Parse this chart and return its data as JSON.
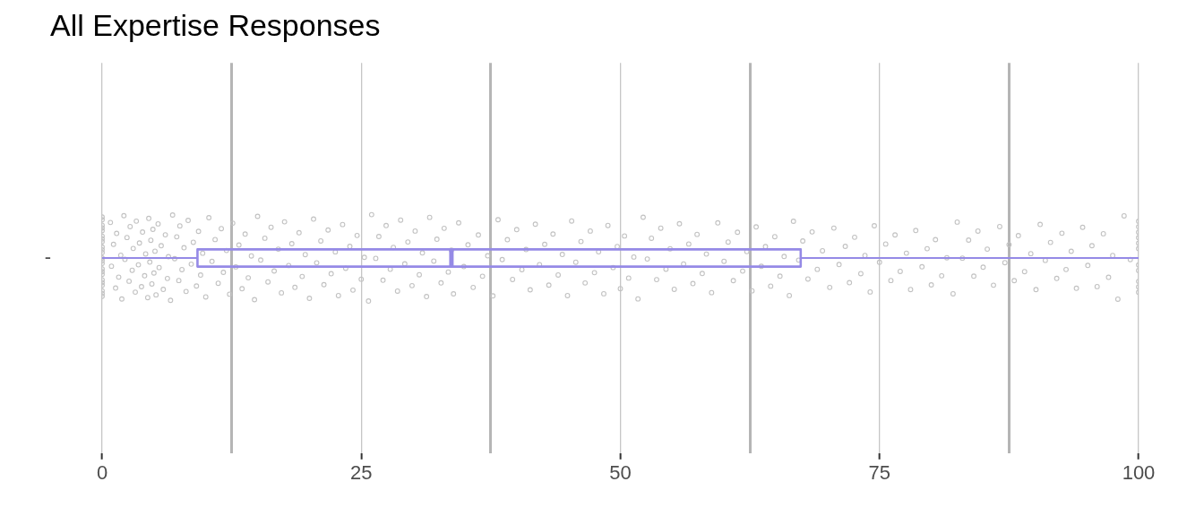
{
  "chart_data": {
    "type": "box",
    "title": "All Expertise Responses",
    "orientation": "horizontal",
    "categories": [
      "-"
    ],
    "xlim": [
      0,
      100
    ],
    "xticks": [
      0,
      {
        "value": 12.5,
        "label": null
      },
      25,
      {
        "value": 37.5,
        "label": null
      },
      50,
      {
        "value": 62.5,
        "label": null
      },
      75,
      {
        "value": 87.5,
        "label": null
      },
      100
    ],
    "grid": "x",
    "series": [
      {
        "type": "scatter",
        "color": "#c2c2c2",
        "marker": "circle",
        "x": [
          "-",
          "-",
          "-",
          "-",
          "-",
          "-",
          "-",
          "-",
          "-",
          "-",
          "-",
          "-",
          "-",
          "-",
          "-",
          "-",
          "-",
          "-",
          "-",
          "-",
          "-",
          "-",
          "-",
          "-",
          "-",
          "-",
          "-",
          "-",
          "-",
          "-",
          "-",
          "-",
          "-",
          "-",
          "-",
          "-",
          "-",
          "-",
          "-",
          "-",
          "-",
          "-",
          "-",
          "-",
          "-",
          "-",
          "-",
          "-",
          "-",
          "-",
          "-",
          "-",
          "-",
          "-",
          "-",
          "-",
          "-",
          "-",
          "-",
          "-",
          "-",
          "-",
          "-",
          "-",
          "-",
          "-",
          "-",
          "-",
          "-",
          "-",
          "-",
          "-",
          "-",
          "-",
          "-",
          "-",
          "-",
          "-",
          "-",
          "-",
          "-",
          "-",
          "-",
          "-",
          "-",
          "-",
          "-",
          "-",
          "-",
          "-",
          "-",
          "-",
          "-",
          "-",
          "-",
          "-",
          "-",
          "-",
          "-",
          "-",
          "-",
          "-",
          "-",
          "-",
          "-",
          "-",
          "-",
          "-",
          "-",
          "-",
          "-",
          "-",
          "-",
          "-",
          "-",
          "-",
          "-",
          "-",
          "-",
          "-",
          "-",
          "-",
          "-",
          "-",
          "-",
          "-",
          "-",
          "-",
          "-",
          "-",
          "-",
          "-",
          "-",
          "-",
          "-",
          "-",
          "-",
          "-",
          "-",
          "-",
          "-",
          "-",
          "-",
          "-",
          "-",
          "-",
          "-",
          "-",
          "-",
          "-",
          "-",
          "-",
          "-",
          "-",
          "-",
          "-",
          "-",
          "-",
          "-",
          "-",
          "-",
          "-",
          "-",
          "-",
          "-",
          "-",
          "-",
          "-",
          "-",
          "-",
          "-",
          "-",
          "-",
          "-",
          "-",
          "-",
          "-",
          "-",
          "-",
          "-",
          "-",
          "-",
          "-",
          "-",
          "-",
          "-",
          "-",
          "-",
          "-",
          "-",
          "-",
          "-",
          "-",
          "-",
          "-",
          "-",
          "-",
          "-",
          "-",
          "-",
          "-",
          "-",
          "-",
          "-",
          "-",
          "-",
          "-",
          "-",
          "-",
          "-",
          "-",
          "-",
          "-",
          "-",
          "-",
          "-",
          "-",
          "-",
          "-",
          "-",
          "-",
          "-",
          "-",
          "-",
          "-",
          "-",
          "-",
          "-",
          "-",
          "-",
          "-",
          "-",
          "-",
          "-",
          "-",
          "-",
          "-",
          "-",
          "-",
          "-",
          "-",
          "-",
          "-",
          "-",
          "-",
          "-",
          "-",
          "-",
          "-",
          "-",
          "-",
          "-",
          "-",
          "-",
          "-",
          "-",
          "-",
          "-",
          "-",
          "-",
          "-",
          "-",
          "-",
          "-",
          "-",
          "-",
          "-",
          "-",
          "-",
          "-",
          "-",
          "-",
          "-",
          "-",
          "-",
          "-",
          "-",
          "-",
          "-",
          "-",
          "-",
          "-",
          "-",
          "-",
          "-",
          "-",
          "-",
          "-",
          "-",
          "-",
          "-",
          "-",
          "-",
          "-",
          "-",
          "-",
          "-",
          "-",
          "-",
          "-"
        ],
        "values": [
          0,
          0,
          0,
          0,
          0,
          0,
          0,
          0,
          0,
          0,
          0,
          0,
          0,
          0,
          0,
          0,
          0,
          0,
          0,
          0,
          0,
          0,
          0,
          0.8,
          0.9,
          1.1,
          1.3,
          1.4,
          1.6,
          1.8,
          1.9,
          2.1,
          2.2,
          2.4,
          2.6,
          2.7,
          2.9,
          3,
          3.2,
          3.3,
          3.5,
          3.6,
          3.8,
          3.9,
          4.1,
          4.2,
          4.4,
          4.5,
          4.6,
          4.7,
          4.8,
          4.9,
          5,
          5.1,
          5.2,
          5.4,
          5.5,
          5.7,
          5.9,
          6.1,
          6.3,
          6.4,
          6.6,
          6.8,
          7,
          7.2,
          7.4,
          7.5,
          7.7,
          7.9,
          8.1,
          8.3,
          8.6,
          8.8,
          9.1,
          9.3,
          9.5,
          9.7,
          10,
          10.3,
          10.6,
          10.9,
          11.2,
          11.5,
          11.7,
          12,
          12.3,
          12.6,
          12.9,
          13.2,
          13.5,
          13.8,
          14.1,
          14.4,
          14.7,
          15,
          15.3,
          15.7,
          16,
          16.3,
          16.6,
          17,
          17.3,
          17.6,
          18,
          18.3,
          18.6,
          19,
          19.3,
          19.6,
          20,
          20.4,
          20.7,
          21.1,
          21.4,
          21.8,
          22.1,
          22.5,
          22.8,
          23.2,
          23.5,
          23.9,
          24.2,
          24.6,
          25,
          25.3,
          25.7,
          26,
          26.4,
          26.7,
          27.1,
          27.4,
          27.8,
          28.1,
          28.5,
          28.8,
          29.2,
          29.5,
          29.9,
          30.2,
          30.6,
          30.9,
          31.3,
          31.6,
          32,
          32.3,
          32.7,
          33,
          33.4,
          33.7,
          33.9,
          34.4,
          34.9,
          35.3,
          35.8,
          36.3,
          36.7,
          37.2,
          37.7,
          38.2,
          38.6,
          39.1,
          39.6,
          40,
          40.5,
          40.9,
          41.3,
          41.8,
          42.2,
          42.7,
          43.1,
          43.5,
          44,
          44.4,
          44.9,
          45.3,
          45.7,
          46.2,
          46.6,
          47.1,
          47.5,
          47.9,
          48.4,
          48.8,
          49.3,
          49.7,
          50,
          50.4,
          50.8,
          51.3,
          51.7,
          52.2,
          52.6,
          53,
          53.5,
          53.9,
          54.4,
          54.8,
          55.2,
          55.7,
          56.1,
          56.6,
          57,
          57.4,
          57.9,
          58.3,
          58.8,
          59.4,
          60,
          60.4,
          60.9,
          61.3,
          61.8,
          62.2,
          62.7,
          63.1,
          63.6,
          64,
          64.5,
          64.9,
          65.4,
          65.8,
          66.3,
          66.7,
          67.2,
          67.6,
          68.1,
          68.5,
          69,
          69.5,
          70.2,
          70.6,
          71.1,
          71.7,
          72.1,
          72.6,
          73.2,
          73.6,
          74.1,
          74.5,
          75,
          75.6,
          76.1,
          76.5,
          77,
          77.6,
          78,
          78.5,
          79.1,
          79.6,
          80,
          80.4,
          81,
          81.5,
          82.1,
          82.5,
          83,
          83.6,
          84.1,
          84.5,
          85,
          85.4,
          86,
          86.6,
          87.1,
          87.5,
          88,
          88.4,
          89,
          89.6,
          90.1,
          90.5,
          91,
          91.5,
          92.1,
          92.6,
          93,
          93.5,
          94,
          94.6,
          95.1,
          95.5,
          96,
          96.6,
          97.1,
          97.5,
          98,
          98.6,
          99.2,
          100,
          100,
          100,
          100,
          100,
          100,
          100,
          100,
          100,
          100,
          100
        ]
      },
      {
        "type": "box",
        "color": "#958ae6",
        "boxes": [
          {
            "low": 0,
            "q1": 9.2,
            "median": 33.7,
            "q3": 67.4,
            "high": 100
          }
        ]
      }
    ]
  }
}
